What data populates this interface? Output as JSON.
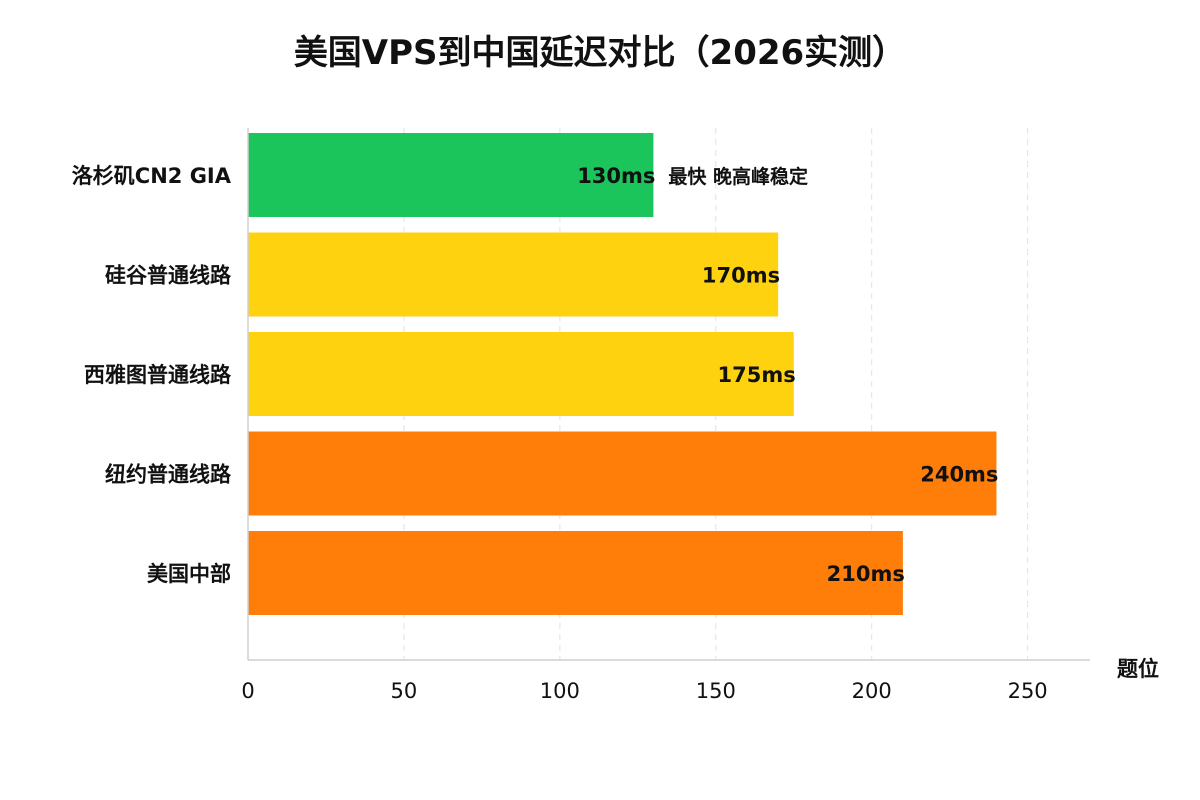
{
  "chart_data": {
    "type": "bar",
    "orientation": "horizontal",
    "title": "美国VPS到中国延迟对比（2026实测）",
    "x_unit_label": "题位",
    "xlim": [
      0,
      270
    ],
    "x_ticks": [
      0,
      50,
      100,
      150,
      200,
      250
    ],
    "grid": true,
    "categories": [
      "洛杉矶CN2 GIA",
      "硅谷普通线路",
      "西雅图普通线路",
      "纽约普通线路",
      "美国中部"
    ],
    "values": [
      130,
      170,
      175,
      240,
      210
    ],
    "value_labels": [
      "130ms",
      "170ms",
      "175ms",
      "240ms",
      "210ms"
    ],
    "bar_colors": [
      "#1cc45c",
      "#ffd20f",
      "#ffd20f",
      "#ff7e0a",
      "#ff7e0a"
    ],
    "annotations": [
      {
        "category": "洛杉矶CN2 GIA",
        "text": "最快 晚高峰稳定"
      }
    ]
  }
}
